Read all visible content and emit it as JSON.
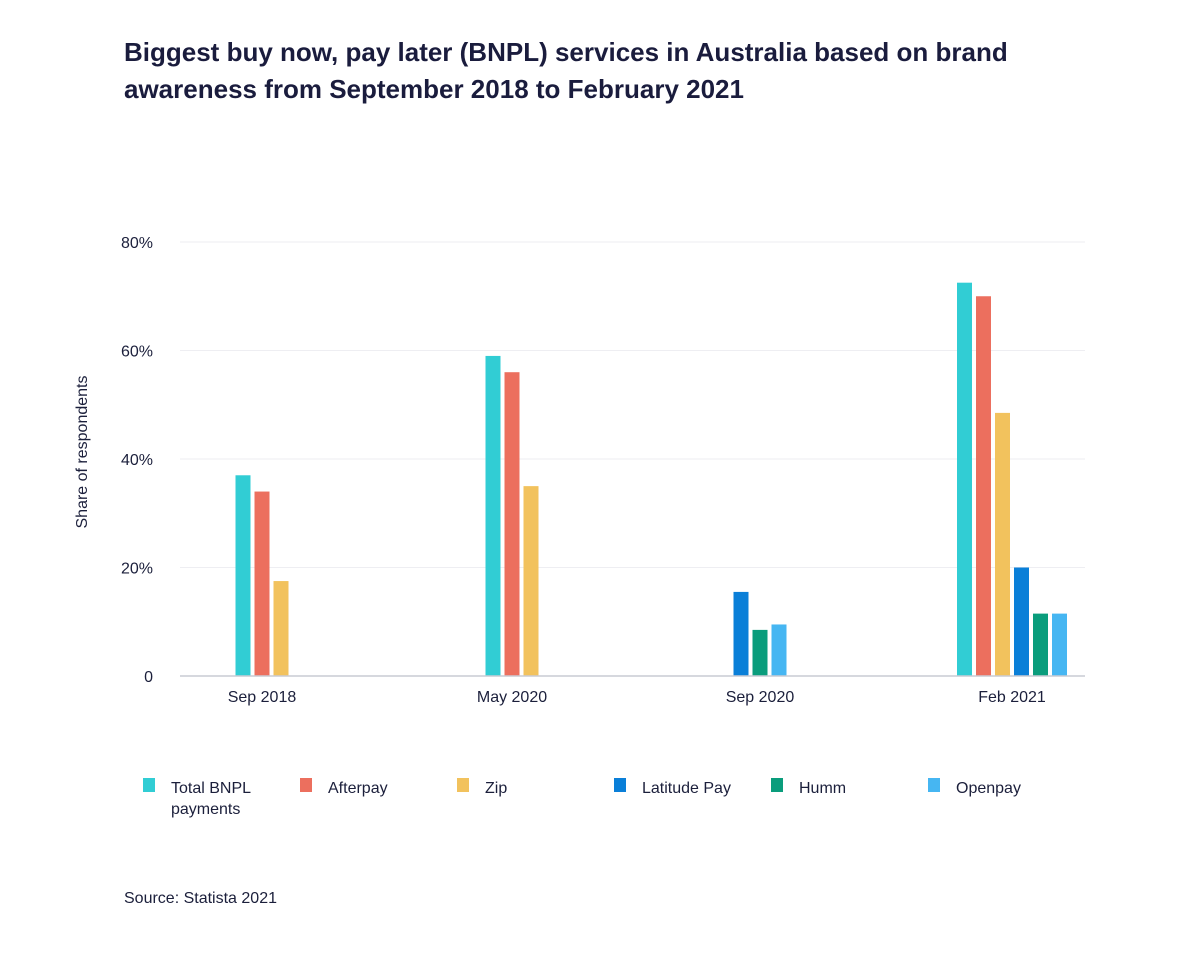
{
  "chart_data": {
    "type": "bar",
    "title": "Biggest buy now, pay later (BNPL) services in Australia based on brand awareness from September 2018 to February 2021",
    "ylabel": "Share of respondents",
    "xlabel": "",
    "ylim": [
      0,
      80
    ],
    "yticks": [
      {
        "value": 0,
        "label": "0"
      },
      {
        "value": 20,
        "label": "20%"
      },
      {
        "value": 40,
        "label": "40%"
      },
      {
        "value": 60,
        "label": "60%"
      },
      {
        "value": 80,
        "label": "80%"
      }
    ],
    "grid": true,
    "legend_position": "bottom",
    "categories": [
      "Sep 2018",
      "May 2020",
      "Sep 2020",
      "Feb 2021"
    ],
    "series": [
      {
        "name": "Total BNPL payments",
        "color": "#31cdd4",
        "values": [
          37,
          59,
          null,
          72.5
        ]
      },
      {
        "name": "Afterpay",
        "color": "#ec6f5e",
        "values": [
          34,
          56,
          null,
          70
        ]
      },
      {
        "name": "Zip",
        "color": "#f2c25d",
        "values": [
          17.5,
          35,
          null,
          48.5
        ]
      },
      {
        "name": "Latitude Pay",
        "color": "#0a7fd8",
        "values": [
          null,
          null,
          15.5,
          20
        ]
      },
      {
        "name": "Humm",
        "color": "#0a9d7c",
        "values": [
          null,
          null,
          8.5,
          11.5
        ]
      },
      {
        "name": "Openpay",
        "color": "#46b6f2",
        "values": [
          null,
          null,
          9.5,
          11.5
        ]
      }
    ]
  },
  "source": "Source: Statista 2021"
}
